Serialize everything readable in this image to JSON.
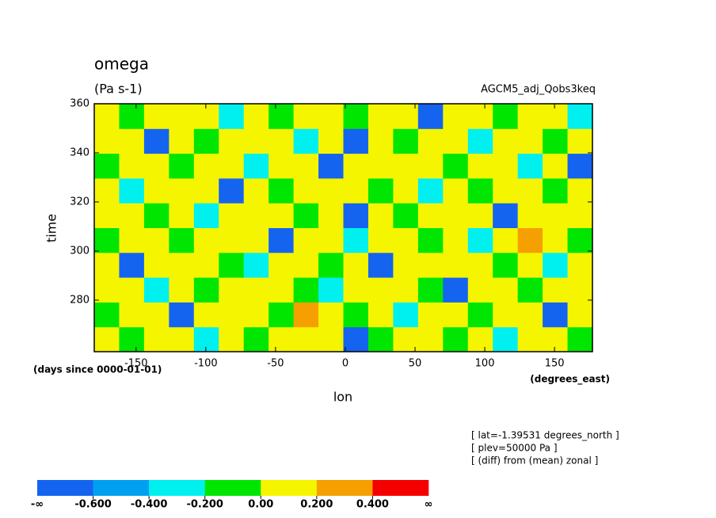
{
  "chart_data": {
    "type": "heatmap",
    "title": "omega",
    "subtitle": "(Pa s-1)",
    "annotation": "AGCM5_adj_Qobs3keq",
    "x_label": "lon",
    "x_unit": "(degrees_east)",
    "y_label": "time",
    "y_unit": "(days since 0000-01-01)",
    "notes": [
      "[ lat=-1.39531 degrees_north ]",
      "[ plev=50000 Pa ]",
      "[ (diff) from (mean) zonal ]"
    ],
    "xlim": [
      -180,
      177.1875
    ],
    "xticks": [
      -150,
      -100,
      -50,
      0,
      50,
      100,
      150
    ],
    "ylim": [
      259,
      360
    ],
    "yticks": [
      280,
      300,
      320,
      340,
      360
    ],
    "levels": [
      {
        "value": null,
        "label": "-∞"
      },
      {
        "value": -0.6,
        "label": "-0.600"
      },
      {
        "value": -0.4,
        "label": "-0.400"
      },
      {
        "value": -0.2,
        "label": "-0.200"
      },
      {
        "value": 0,
        "label": "0.00"
      },
      {
        "value": 0.2,
        "label": "0.200"
      },
      {
        "value": 0.4,
        "label": "0.400"
      },
      {
        "value": null,
        "label": "∞"
      }
    ],
    "colors": [
      "#1464f0",
      "#00a0f0",
      "#00f0f0",
      "#00e600",
      "#f5f500",
      "#f5a000",
      "#f50000"
    ],
    "z": [
      [
        0.1,
        -0.1,
        0.1,
        0.1,
        -0.3,
        0.1,
        -0.1,
        0.1,
        0.1,
        0.1,
        -0.7,
        -0.1,
        0.1,
        0.1,
        -0.1,
        0.1,
        -0.3,
        0.1,
        0.1,
        -0.1
      ],
      [
        -0.1,
        0.1,
        0.1,
        -0.7,
        0.1,
        0.1,
        0.1,
        -0.1,
        0.3,
        0.1,
        -0.1,
        0.1,
        -0.3,
        0.1,
        0.1,
        -0.1,
        0.1,
        0.1,
        -0.7,
        0.1
      ],
      [
        0.1,
        0.1,
        -0.3,
        0.1,
        -0.1,
        0.1,
        0.1,
        0.1,
        -0.1,
        -0.3,
        0.1,
        0.1,
        0.1,
        -0.1,
        -0.7,
        0.1,
        0.1,
        -0.1,
        0.1,
        0.1
      ],
      [
        0.1,
        -0.7,
        0.1,
        0.1,
        0.1,
        -0.1,
        -0.3,
        0.1,
        0.1,
        -0.1,
        0.1,
        -0.7,
        0.1,
        0.1,
        0.1,
        0.1,
        -0.1,
        0.1,
        -0.3,
        0.1
      ],
      [
        -0.1,
        0.1,
        0.1,
        -0.1,
        0.1,
        0.1,
        0.1,
        -0.7,
        0.1,
        0.1,
        -0.3,
        0.1,
        0.1,
        -0.1,
        0.1,
        -0.3,
        0.1,
        0.3,
        0.1,
        -0.1
      ],
      [
        0.1,
        0.1,
        -0.1,
        0.1,
        -0.3,
        0.1,
        0.1,
        0.1,
        -0.1,
        0.1,
        -0.7,
        0.1,
        -0.1,
        0.1,
        0.1,
        0.1,
        -0.7,
        0.1,
        0.1,
        0.1
      ],
      [
        0.1,
        -0.3,
        0.1,
        0.1,
        0.1,
        -0.7,
        0.1,
        -0.1,
        0.1,
        0.1,
        0.1,
        -0.1,
        0.1,
        -0.3,
        0.1,
        -0.1,
        0.1,
        0.1,
        -0.1,
        0.1
      ],
      [
        -0.1,
        0.1,
        0.1,
        -0.1,
        0.1,
        0.1,
        -0.3,
        0.1,
        0.1,
        -0.7,
        0.1,
        0.1,
        0.1,
        0.1,
        -0.1,
        0.1,
        0.1,
        -0.3,
        0.1,
        -0.7
      ],
      [
        0.1,
        0.1,
        -0.7,
        0.1,
        -0.1,
        0.1,
        0.1,
        0.1,
        -0.3,
        0.1,
        -0.7,
        0.1,
        -0.1,
        0.1,
        0.1,
        -0.3,
        0.1,
        0.1,
        -0.1,
        0.1
      ],
      [
        0.1,
        -0.1,
        0.1,
        0.1,
        0.1,
        -0.3,
        0.1,
        -0.1,
        0.1,
        0.1,
        -0.1,
        0.1,
        0.1,
        -0.7,
        0.1,
        0.1,
        -0.1,
        0.1,
        0.1,
        -0.3
      ]
    ]
  }
}
